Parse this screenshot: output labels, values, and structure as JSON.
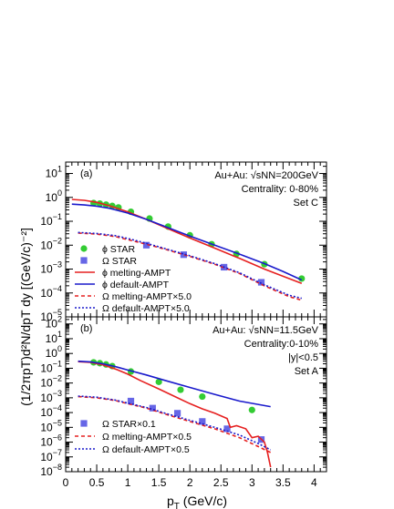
{
  "chart_data": [
    {
      "type": "scatter",
      "panel_label": "(a)",
      "x_range": [
        0,
        4.2
      ],
      "y_range": [
        1e-05,
        30
      ],
      "y_scale": "log",
      "annotation_lines": [
        "Au+Au: √sNN=200GeV",
        "Centrality: 0-80%",
        "Set C"
      ],
      "legend_position": "bottom-left",
      "series": [
        {
          "name": "ϕ STAR",
          "style": "marker",
          "marker": "circle",
          "color": "#33cc33",
          "x": [
            0.45,
            0.55,
            0.65,
            0.75,
            0.85,
            1.05,
            1.35,
            1.65,
            2.0,
            2.35,
            2.75,
            3.2,
            3.8
          ],
          "y": [
            0.58,
            0.55,
            0.5,
            0.44,
            0.38,
            0.25,
            0.13,
            0.06,
            0.026,
            0.011,
            0.0043,
            0.0016,
            0.0004
          ]
        },
        {
          "name": "Ω STAR",
          "style": "marker",
          "marker": "square",
          "color": "#6666e6",
          "x": [
            1.3,
            1.9,
            2.55,
            3.15
          ],
          "y": [
            0.01,
            0.004,
            0.0012,
            0.00028
          ]
        },
        {
          "name": "ϕ melting-AMPT",
          "style": "line",
          "dash": "solid",
          "color": "#e62020",
          "x": [
            0.1,
            0.3,
            0.5,
            0.7,
            1.0,
            1.3,
            1.6,
            2.0,
            2.4,
            2.8,
            3.2,
            3.5,
            3.8
          ],
          "y": [
            0.82,
            0.75,
            0.62,
            0.45,
            0.25,
            0.12,
            0.055,
            0.02,
            0.0075,
            0.0028,
            0.001,
            0.0005,
            0.00025
          ]
        },
        {
          "name": "ϕ default-AMPT",
          "style": "line",
          "dash": "solid",
          "color": "#1a1acc",
          "x": [
            0.1,
            0.3,
            0.5,
            0.7,
            1.0,
            1.3,
            1.6,
            2.0,
            2.4,
            2.8,
            3.2,
            3.5,
            3.8
          ],
          "y": [
            0.52,
            0.48,
            0.43,
            0.35,
            0.22,
            0.12,
            0.06,
            0.024,
            0.01,
            0.0042,
            0.0017,
            0.0008,
            0.00035
          ]
        },
        {
          "name": "Ω melting-AMPT×5.0",
          "style": "line",
          "dash": "dashed",
          "color": "#e62020",
          "x": [
            0.2,
            0.5,
            0.8,
            1.0,
            1.3,
            1.6,
            2.0,
            2.4,
            2.8,
            3.2,
            3.6,
            3.8
          ],
          "y": [
            0.032,
            0.029,
            0.023,
            0.017,
            0.011,
            0.0068,
            0.0034,
            0.0016,
            0.00065,
            0.0002,
            7e-05,
            5e-05
          ]
        },
        {
          "name": "Ω default-AMPT×5.0",
          "style": "line",
          "dash": "dotted",
          "color": "#1a1acc",
          "x": [
            0.2,
            0.5,
            0.8,
            1.0,
            1.3,
            1.6,
            2.0,
            2.4,
            2.8,
            3.2,
            3.6,
            3.8
          ],
          "y": [
            0.034,
            0.031,
            0.025,
            0.019,
            0.012,
            0.0072,
            0.0036,
            0.0017,
            0.0007,
            0.00022,
            8e-05,
            6e-05
          ]
        }
      ]
    },
    {
      "type": "scatter",
      "panel_label": "(b)",
      "x_range": [
        0,
        4.2
      ],
      "y_range": [
        1e-08,
        300
      ],
      "y_scale": "log",
      "annotation_lines": [
        "Au+Au: √sNN=11.5GeV",
        "Centrality:0-10%",
        "|y|<0.5",
        "Set A"
      ],
      "legend_position": "bottom-left",
      "series": [
        {
          "name": "ϕ STAR",
          "style": "marker",
          "marker": "circle",
          "color": "#33cc33",
          "x": [
            0.45,
            0.55,
            0.65,
            0.75,
            1.05,
            1.5,
            1.85,
            2.2,
            3.0
          ],
          "y": [
            0.25,
            0.22,
            0.18,
            0.14,
            0.06,
            0.012,
            0.0035,
            0.0012,
            0.00015
          ]
        },
        {
          "name": "Ω STAR×0.1",
          "style": "marker",
          "marker": "square",
          "color": "#6666e6",
          "x": [
            1.05,
            1.4,
            1.8,
            2.2,
            2.6,
            3.15
          ],
          "y": [
            0.0006,
            0.0002,
            9e-05,
            2.5e-05,
            8e-06,
            1.5e-06
          ]
        },
        {
          "name": "ϕ melting-AMPT",
          "style": "line",
          "dash": "solid",
          "color": "#e62020",
          "x": [
            0.2,
            0.4,
            0.6,
            0.8,
            1.0,
            1.2,
            1.5,
            1.8,
            2.0,
            2.2,
            2.4,
            2.6,
            2.65,
            2.75,
            2.9,
            3.0,
            3.1,
            3.2,
            3.25,
            3.3
          ],
          "y": [
            0.28,
            0.25,
            0.17,
            0.09,
            0.04,
            0.015,
            0.004,
            0.001,
            0.0004,
            0.00018,
            9e-05,
            4e-05,
            1e-05,
            1.3e-05,
            8e-06,
            2e-06,
            2.5e-06,
            1e-06,
            2e-07,
            2e-08
          ]
        },
        {
          "name": "ϕ default-AMPT",
          "style": "line",
          "dash": "solid",
          "color": "#1a1acc",
          "x": [
            0.2,
            0.4,
            0.6,
            0.8,
            1.0,
            1.3,
            1.6,
            2.0,
            2.4,
            2.8,
            3.3
          ],
          "y": [
            0.3,
            0.27,
            0.2,
            0.13,
            0.075,
            0.035,
            0.015,
            0.005,
            0.0017,
            0.0006,
            0.00025
          ]
        },
        {
          "name": "Ω melting-AMPT×0.5",
          "style": "line",
          "dash": "dashed",
          "color": "#e62020",
          "x": [
            0.2,
            0.5,
            0.8,
            1.0,
            1.3,
            1.6,
            2.0,
            2.4,
            2.8,
            3.1,
            3.3
          ],
          "y": [
            0.0012,
            0.001,
            0.00065,
            0.0004,
            0.0002,
            8e-05,
            2.5e-05,
            8e-06,
            2e-06,
            5e-07,
            2e-07
          ]
        },
        {
          "name": "Ω default-AMPT×0.5",
          "style": "line",
          "dash": "dotted",
          "color": "#1a1acc",
          "x": [
            0.2,
            0.5,
            0.8,
            1.0,
            1.3,
            1.6,
            2.0,
            2.4,
            2.8,
            3.1,
            3.3
          ],
          "y": [
            0.0013,
            0.0011,
            0.0007,
            0.00044,
            0.00022,
            9e-05,
            3e-05,
            1e-05,
            3e-06,
            8e-07,
            3e-07
          ]
        }
      ]
    }
  ],
  "xlabel": "p_T (GeV/c)",
  "ylabel": "(1/2πp_T)d²N/dp_T dy [(GeV/c)⁻²]",
  "x_ticks": [
    "0",
    "0.5",
    "1",
    "1.5",
    "2",
    "2.5",
    "3",
    "3.5",
    "4"
  ],
  "legend_a": [
    "ϕ STAR",
    "Ω STAR",
    "ϕ melting-AMPT",
    "ϕ default-AMPT",
    "Ω melting-AMPT×5.0",
    "Ω default-AMPT×5.0"
  ],
  "legend_b": [
    "Ω STAR×0.1",
    "Ω melting-AMPT×0.5",
    "Ω default-AMPT×0.5"
  ]
}
